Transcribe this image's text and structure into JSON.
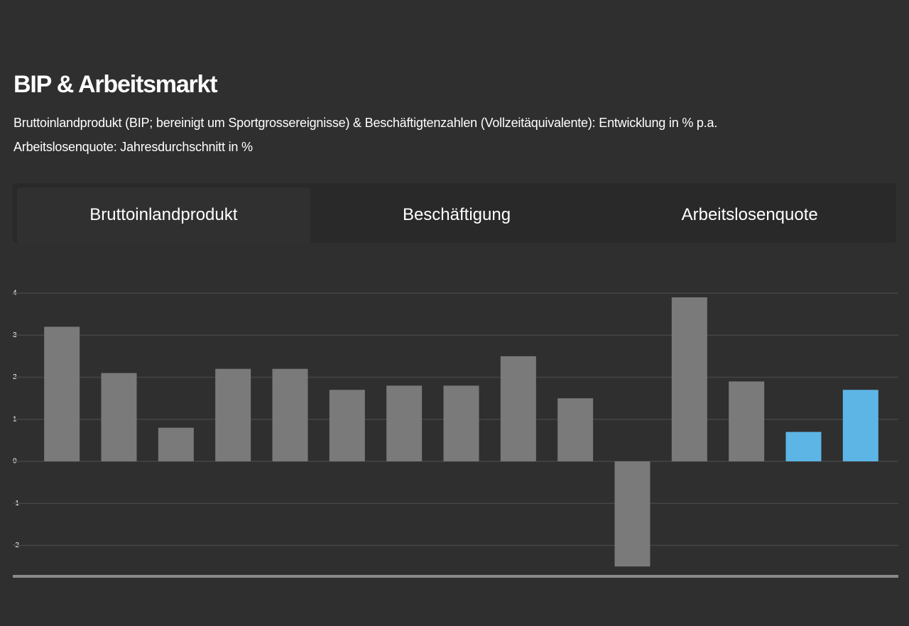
{
  "header": {
    "title": "BIP & Arbeitsmarkt",
    "subtitle": [
      "Bruttoinlandprodukt (BIP; bereinigt um Sportgrossereignisse) & Beschäftigtenzahlen (Vollzeitäquivalente): Entwicklung in % p.a.",
      "Arbeitslosenquote: Jahresdurchschnitt in %"
    ]
  },
  "tabs": [
    {
      "label": "Bruttoinlandprodukt",
      "active": true
    },
    {
      "label": "Beschäftigung",
      "active": false
    },
    {
      "label": "Arbeitslosenquote",
      "active": false
    }
  ],
  "chart_data": {
    "type": "bar",
    "categories": [
      null,
      null,
      null,
      null,
      null,
      null,
      null,
      null,
      null,
      null,
      null,
      null,
      null,
      null,
      null
    ],
    "values": [
      3.2,
      2.1,
      0.8,
      2.2,
      2.2,
      1.7,
      1.8,
      1.8,
      2.5,
      1.5,
      -2.5,
      3.9,
      1.9,
      0.7,
      1.7
    ],
    "colors": [
      "#7a7a7a",
      "#7a7a7a",
      "#7a7a7a",
      "#7a7a7a",
      "#7a7a7a",
      "#7a7a7a",
      "#7a7a7a",
      "#7a7a7a",
      "#7a7a7a",
      "#7a7a7a",
      "#7a7a7a",
      "#7a7a7a",
      "#7a7a7a",
      "#5db5e6",
      "#5db5e6"
    ],
    "ylim": [
      -2.7,
      4
    ],
    "yticks": [
      -2,
      -1,
      0,
      1,
      2,
      3,
      4
    ],
    "grid": true
  }
}
